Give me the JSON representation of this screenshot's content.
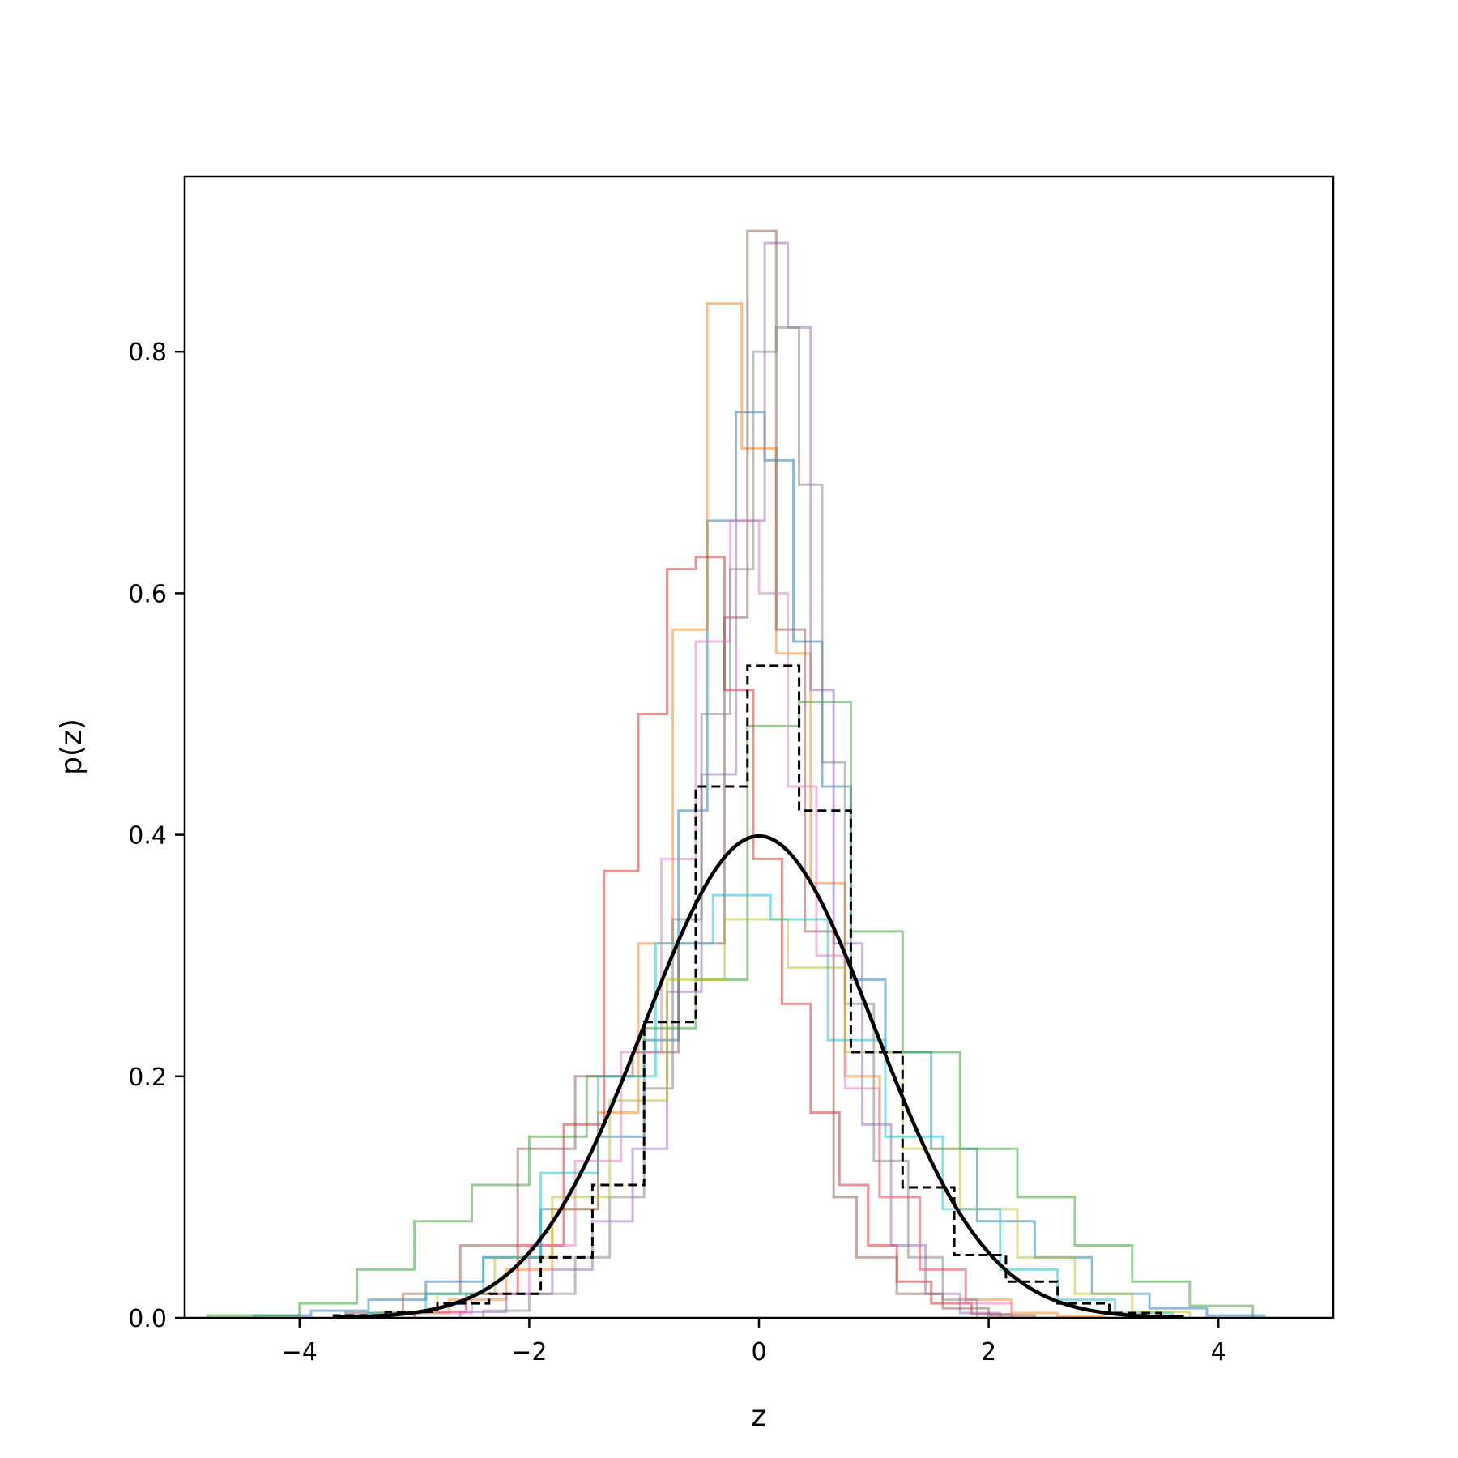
{
  "chart_data": {
    "type": "line",
    "title": "",
    "xlabel": "z",
    "ylabel": "p(z)",
    "xlim": [
      -5,
      5
    ],
    "ylim": [
      0,
      0.945
    ],
    "grid": false,
    "legend": "none",
    "x_ticks": [
      -4,
      -2,
      0,
      2,
      4
    ],
    "x_tick_labels": [
      "−4",
      "−2",
      "0",
      "2",
      "4"
    ],
    "y_ticks": [
      0.0,
      0.2,
      0.4,
      0.6,
      0.8
    ],
    "y_tick_labels": [
      "0.0",
      "0.2",
      "0.4",
      "0.6",
      "0.8"
    ],
    "reference_curve": {
      "style": "solid",
      "color": "#000000",
      "function": "standard normal pdf",
      "x_range": [
        -3.7,
        3.7
      ]
    },
    "dashed_histogram": {
      "color": "#000000",
      "edges": [
        -3.7,
        -3.25,
        -2.8,
        -2.35,
        -1.9,
        -1.45,
        -1.0,
        -0.55,
        -0.1,
        0.35,
        0.8,
        1.25,
        1.7,
        2.15,
        2.6,
        3.05,
        3.5
      ],
      "values": [
        0.002,
        0.005,
        0.012,
        0.02,
        0.05,
        0.11,
        0.245,
        0.44,
        0.54,
        0.42,
        0.22,
        0.108,
        0.052,
        0.03,
        0.012,
        0.004
      ]
    },
    "series": [
      {
        "color": "#1f77b4",
        "edges": [
          -4.4,
          -3.9,
          -3.4,
          -2.9,
          -2.4,
          -1.9,
          -1.4,
          -1.0,
          -0.7,
          -0.45,
          -0.2,
          0.05,
          0.3,
          0.55,
          0.8,
          1.1,
          1.5,
          1.9,
          2.4,
          2.9,
          3.4,
          3.9,
          4.4
        ],
        "values": [
          0.002,
          0.006,
          0.015,
          0.03,
          0.05,
          0.09,
          0.15,
          0.23,
          0.42,
          0.66,
          0.75,
          0.71,
          0.56,
          0.44,
          0.28,
          0.22,
          0.14,
          0.08,
          0.05,
          0.02,
          0.008,
          0.002
        ]
      },
      {
        "color": "#ff7f0e",
        "edges": [
          -3.2,
          -2.7,
          -2.2,
          -1.8,
          -1.4,
          -1.05,
          -0.75,
          -0.45,
          -0.15,
          0.15,
          0.45,
          0.75,
          1.05,
          1.4,
          1.8,
          2.2,
          2.6,
          3.0
        ],
        "values": [
          0.004,
          0.015,
          0.04,
          0.09,
          0.17,
          0.31,
          0.57,
          0.84,
          0.72,
          0.55,
          0.36,
          0.2,
          0.1,
          0.04,
          0.015,
          0.004,
          0.001
        ]
      },
      {
        "color": "#2ca02c",
        "edges": [
          -4.8,
          -4.0,
          -3.5,
          -3.0,
          -2.5,
          -2.0,
          -1.5,
          -1.0,
          -0.55,
          -0.1,
          0.35,
          0.8,
          1.25,
          1.75,
          2.25,
          2.75,
          3.25,
          3.75,
          4.3
        ],
        "values": [
          0.002,
          0.012,
          0.04,
          0.08,
          0.11,
          0.15,
          0.2,
          0.24,
          0.28,
          0.49,
          0.51,
          0.32,
          0.22,
          0.14,
          0.1,
          0.06,
          0.03,
          0.01
        ]
      },
      {
        "color": "#d62728",
        "edges": [
          -3.0,
          -2.55,
          -2.1,
          -1.7,
          -1.35,
          -1.05,
          -0.8,
          -0.55,
          -0.3,
          -0.05,
          0.2,
          0.45,
          0.7,
          0.95,
          1.2,
          1.5,
          1.85,
          2.2
        ],
        "values": [
          0.005,
          0.02,
          0.06,
          0.16,
          0.37,
          0.5,
          0.62,
          0.63,
          0.52,
          0.38,
          0.26,
          0.17,
          0.11,
          0.06,
          0.03,
          0.012,
          0.003
        ]
      },
      {
        "color": "#9467bd",
        "edges": [
          -2.6,
          -2.2,
          -1.8,
          -1.45,
          -1.1,
          -0.8,
          -0.5,
          -0.2,
          0.05,
          0.25,
          0.45,
          0.65,
          0.9,
          1.15,
          1.45,
          1.75,
          2.1
        ],
        "values": [
          0.005,
          0.02,
          0.04,
          0.08,
          0.14,
          0.27,
          0.45,
          0.66,
          0.89,
          0.82,
          0.52,
          0.31,
          0.16,
          0.06,
          0.02,
          0.004
        ]
      },
      {
        "color": "#8c564b",
        "edges": [
          -3.6,
          -3.1,
          -2.6,
          -2.1,
          -1.6,
          -1.1,
          -0.7,
          -0.3,
          -0.1,
          0.15,
          0.4,
          0.65,
          0.85,
          1.2,
          1.6,
          2.0,
          2.4
        ],
        "values": [
          0.004,
          0.02,
          0.06,
          0.14,
          0.2,
          0.22,
          0.31,
          0.58,
          0.9,
          0.57,
          0.32,
          0.1,
          0.05,
          0.02,
          0.008,
          0.002
        ]
      },
      {
        "color": "#e377c2",
        "edges": [
          -3.0,
          -2.5,
          -2.0,
          -1.6,
          -1.2,
          -0.85,
          -0.55,
          -0.25,
          0.0,
          0.25,
          0.5,
          0.75,
          1.05,
          1.4,
          1.8,
          2.2
        ],
        "values": [
          0.004,
          0.02,
          0.06,
          0.13,
          0.22,
          0.38,
          0.56,
          0.66,
          0.6,
          0.44,
          0.3,
          0.19,
          0.1,
          0.04,
          0.012
        ]
      },
      {
        "color": "#7f7f7f",
        "edges": [
          -2.4,
          -2.0,
          -1.6,
          -1.3,
          -1.0,
          -0.75,
          -0.5,
          -0.25,
          -0.05,
          0.15,
          0.35,
          0.55,
          0.75,
          1.0,
          1.3,
          1.6,
          1.9
        ],
        "values": [
          0.006,
          0.02,
          0.05,
          0.1,
          0.19,
          0.33,
          0.5,
          0.62,
          0.8,
          0.82,
          0.69,
          0.46,
          0.26,
          0.13,
          0.05,
          0.015
        ]
      },
      {
        "color": "#bcbd22",
        "edges": [
          -3.3,
          -2.8,
          -2.3,
          -1.8,
          -1.3,
          -0.8,
          -0.3,
          0.25,
          0.75,
          1.25,
          1.75,
          2.25,
          2.75,
          3.25,
          3.75
        ],
        "values": [
          0.005,
          0.02,
          0.05,
          0.1,
          0.18,
          0.28,
          0.33,
          0.29,
          0.22,
          0.14,
          0.09,
          0.05,
          0.02,
          0.005
        ]
      },
      {
        "color": "#17becf",
        "edges": [
          -3.4,
          -2.9,
          -2.4,
          -1.9,
          -1.4,
          -0.9,
          -0.4,
          0.1,
          0.6,
          1.1,
          1.6,
          2.1,
          2.6,
          3.1,
          3.6
        ],
        "values": [
          0.004,
          0.02,
          0.05,
          0.12,
          0.2,
          0.31,
          0.35,
          0.33,
          0.23,
          0.15,
          0.09,
          0.04,
          0.015,
          0.004
        ]
      }
    ]
  }
}
